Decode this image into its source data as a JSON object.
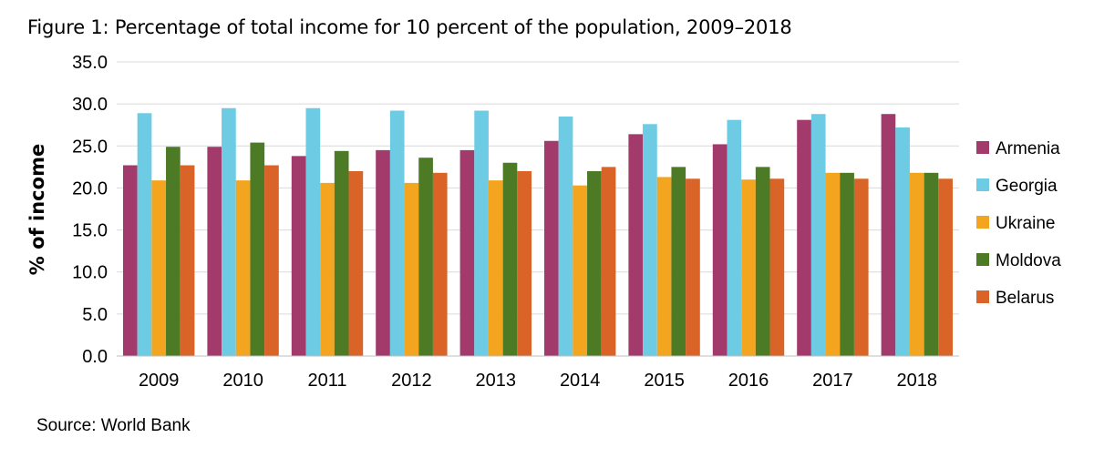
{
  "chart_data": {
    "type": "bar",
    "title": "Figure 1: Percentage of total income for 10 percent of the population, 2009–2018",
    "ylabel": "% of income",
    "xlabel": "",
    "source": "Source: World Bank",
    "categories": [
      "2009",
      "2010",
      "2011",
      "2012",
      "2013",
      "2014",
      "2015",
      "2016",
      "2017",
      "2018"
    ],
    "ylim": [
      0,
      35
    ],
    "yticks": [
      {
        "value": 0,
        "label": "0.0"
      },
      {
        "value": 5,
        "label": "5.0"
      },
      {
        "value": 10,
        "label": "10.0"
      },
      {
        "value": 15,
        "label": "15.0"
      },
      {
        "value": 20,
        "label": "20.0"
      },
      {
        "value": 25,
        "label": "25.0"
      },
      {
        "value": 30,
        "label": "30.0"
      },
      {
        "value": 35,
        "label": "35.0"
      }
    ],
    "grid": true,
    "legend_position": "right",
    "series": [
      {
        "name": "Armenia",
        "color": "#A23A6B",
        "values": [
          22.7,
          24.9,
          23.8,
          24.5,
          24.5,
          25.6,
          26.4,
          25.2,
          28.1,
          28.8
        ]
      },
      {
        "name": "Georgia",
        "color": "#6DCCE4",
        "values": [
          28.9,
          29.5,
          29.5,
          29.2,
          29.2,
          28.5,
          27.6,
          28.1,
          28.8,
          27.2
        ]
      },
      {
        "name": "Ukraine",
        "color": "#F3A51F",
        "values": [
          20.9,
          20.9,
          20.6,
          20.6,
          20.9,
          20.3,
          21.3,
          21.0,
          21.8,
          21.8
        ]
      },
      {
        "name": "Moldova",
        "color": "#4C7A25",
        "values": [
          24.9,
          25.4,
          24.4,
          23.6,
          23.0,
          22.0,
          22.5,
          22.5,
          21.8,
          21.8
        ]
      },
      {
        "name": "Belarus",
        "color": "#DA6427",
        "values": [
          22.7,
          22.7,
          22.0,
          21.8,
          22.0,
          22.5,
          21.1,
          21.1,
          21.1,
          21.1
        ]
      }
    ]
  }
}
